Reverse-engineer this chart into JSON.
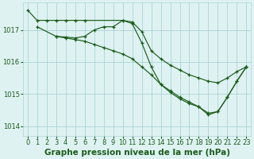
{
  "background_color": "#dff2f2",
  "grid_color": "#aad4d4",
  "line_color": "#1a5c1a",
  "xlabel": "Graphe pression niveau de la mer (hPa)",
  "xlabel_fontsize": 7.5,
  "tick_fontsize": 6,
  "ylim": [
    1013.7,
    1017.85
  ],
  "xlim": [
    -0.5,
    23.5
  ],
  "yticks": [
    1014,
    1015,
    1016,
    1017
  ],
  "xticks": [
    0,
    1,
    2,
    3,
    4,
    5,
    6,
    7,
    8,
    9,
    10,
    11,
    12,
    13,
    14,
    15,
    16,
    17,
    18,
    19,
    20,
    21,
    22,
    23
  ],
  "series1_x": [
    0,
    1,
    2,
    3,
    4,
    5,
    6,
    10,
    11,
    12,
    13,
    14,
    15,
    16,
    17,
    18,
    19,
    20,
    21,
    22,
    23
  ],
  "series1_y": [
    1017.62,
    1017.3,
    1017.3,
    1017.3,
    1017.3,
    1017.3,
    1017.3,
    1017.3,
    1017.25,
    1016.95,
    1016.35,
    1016.1,
    1015.9,
    1015.75,
    1015.6,
    1015.5,
    1015.4,
    1015.35,
    1015.5,
    1015.7,
    1015.85
  ],
  "series2_x": [
    1,
    3,
    4,
    5,
    6,
    7,
    8,
    9,
    10,
    11,
    12,
    13,
    14,
    15,
    16,
    17,
    18,
    19,
    20,
    21,
    22,
    23
  ],
  "series2_y": [
    1017.1,
    1016.8,
    1016.78,
    1016.75,
    1016.8,
    1017.0,
    1017.1,
    1017.1,
    1017.3,
    1017.2,
    1016.6,
    1015.85,
    1015.3,
    1015.1,
    1014.9,
    1014.75,
    1014.6,
    1014.4,
    1014.45,
    1014.9,
    1015.4,
    1015.85
  ],
  "series3_x": [
    3,
    4,
    5,
    6,
    7,
    8,
    9,
    10,
    11,
    12,
    13,
    14,
    15,
    16,
    17,
    18,
    19,
    20,
    21,
    22,
    23
  ],
  "series3_y": [
    1016.8,
    1016.75,
    1016.7,
    1016.65,
    1016.55,
    1016.45,
    1016.35,
    1016.25,
    1016.1,
    1015.85,
    1015.6,
    1015.3,
    1015.05,
    1014.85,
    1014.7,
    1014.6,
    1014.35,
    1014.45,
    1014.9,
    1015.4,
    1015.85
  ]
}
